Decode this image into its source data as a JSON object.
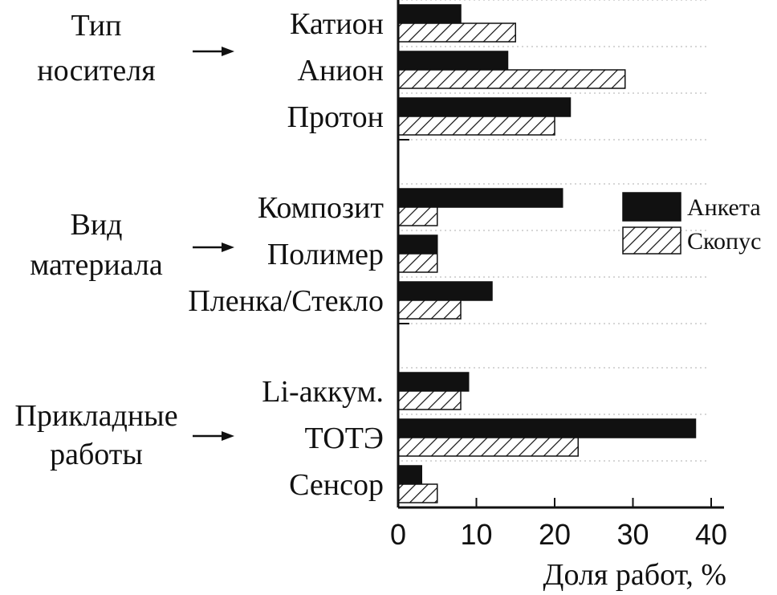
{
  "chart_data": {
    "type": "bar",
    "orientation": "horizontal",
    "xlabel": "Доля работ, %",
    "xlim": [
      0,
      41
    ],
    "xticks": [
      "0",
      "10",
      "20",
      "30",
      "40"
    ],
    "grid": "dotted horizontal",
    "legend_position": "right",
    "categories": [
      "Катион",
      "Анион",
      "Протон",
      "Композит",
      "Полимер",
      "Пленка/Стекло",
      "Li-аккум.",
      "ТОТЭ",
      "Сенсор"
    ],
    "groups": [
      {
        "lines": [
          "Тип",
          "носителя"
        ]
      },
      {
        "lines": [
          "Вид",
          "материала"
        ]
      },
      {
        "lines": [
          "Прикладные",
          "работы"
        ]
      }
    ],
    "series": [
      {
        "name": "Анкета",
        "fill": "#111111",
        "values": [
          8,
          14,
          22,
          21,
          5,
          12,
          9,
          38,
          3
        ]
      },
      {
        "name": "Скопус",
        "fill": "hatch",
        "values": [
          15,
          29,
          20,
          5,
          5,
          8,
          8,
          23,
          5
        ]
      }
    ]
  }
}
